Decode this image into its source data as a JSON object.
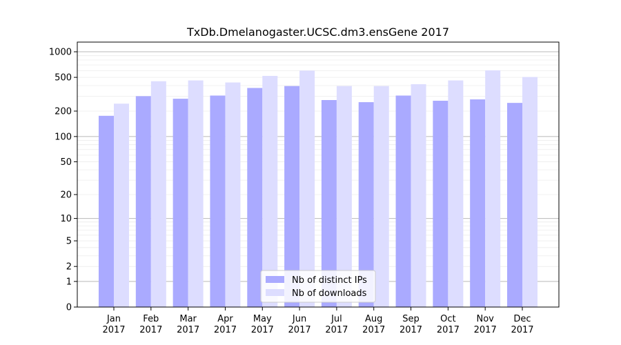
{
  "chart_data": {
    "type": "bar",
    "title": "TxDb.Dmelanogaster.UCSC.dm3.ensGene 2017",
    "xlabel": "",
    "ylabel": "",
    "yscale": "log1p",
    "ylim": [
      0,
      1300
    ],
    "yticks": [
      0,
      1,
      2,
      5,
      10,
      20,
      50,
      100,
      200,
      500,
      1000
    ],
    "categories": [
      "Jan\n2017",
      "Feb\n2017",
      "Mar\n2017",
      "Apr\n2017",
      "May\n2017",
      "Jun\n2017",
      "Jul\n2017",
      "Aug\n2017",
      "Sep\n2017",
      "Oct\n2017",
      "Nov\n2017",
      "Dec\n2017"
    ],
    "series": [
      {
        "name": "Nb of distinct IPs",
        "color": "#aaaaff",
        "values": [
          176,
          300,
          280,
          305,
          375,
          395,
          270,
          255,
          305,
          265,
          275,
          250
        ]
      },
      {
        "name": "Nb of downloads",
        "color": "#ddddff",
        "values": [
          245,
          450,
          460,
          435,
          520,
          600,
          395,
          395,
          415,
          460,
          605,
          505
        ]
      }
    ],
    "legend_position": "lower center",
    "grid": true
  }
}
